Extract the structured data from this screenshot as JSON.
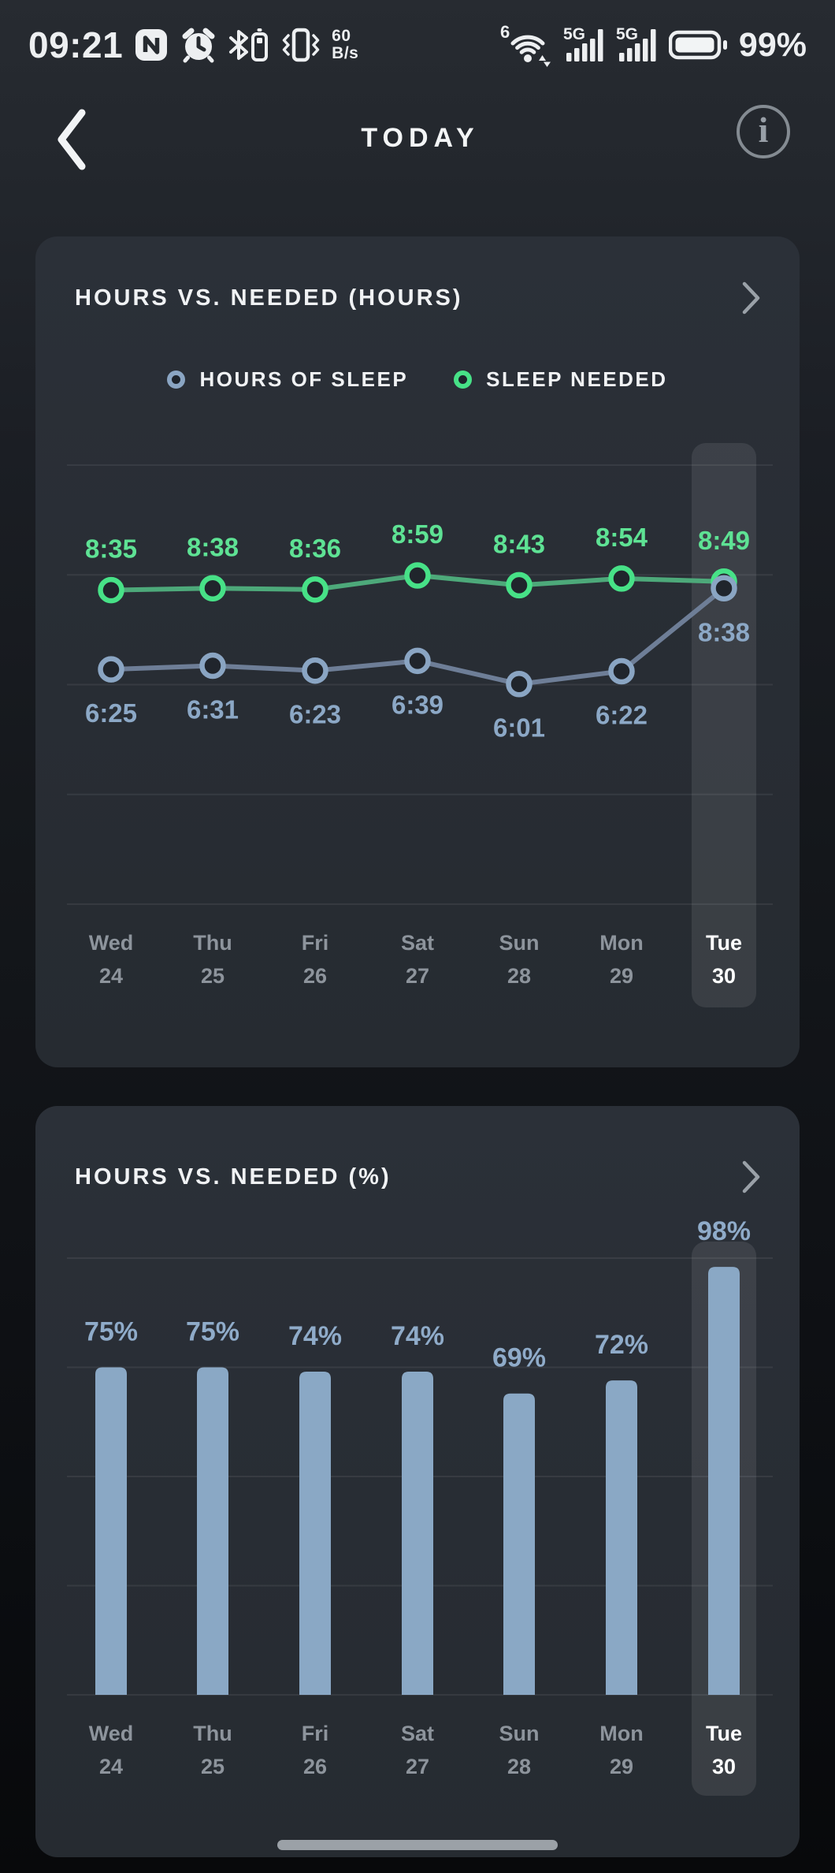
{
  "status_bar": {
    "time": "09:21",
    "net_speed": {
      "value": "60",
      "unit": "B/s"
    },
    "wifi_generation": "6",
    "cellular": [
      {
        "label": "5G"
      },
      {
        "label": "5G"
      }
    ],
    "battery_percent": "99%"
  },
  "header": {
    "title": "TODAY"
  },
  "chart_data": [
    {
      "type": "line",
      "title": "HOURS VS. NEEDED (HOURS)",
      "x_categories": [
        {
          "day": "Wed",
          "date": "24"
        },
        {
          "day": "Thu",
          "date": "25"
        },
        {
          "day": "Fri",
          "date": "26"
        },
        {
          "day": "Sat",
          "date": "27"
        },
        {
          "day": "Sun",
          "date": "28"
        },
        {
          "day": "Mon",
          "date": "29"
        },
        {
          "day": "Tue",
          "date": "30"
        }
      ],
      "highlight_index": 6,
      "ylim_hours": [
        0,
        12
      ],
      "gridline_hours": [
        0,
        3,
        6,
        9,
        12
      ],
      "grid": true,
      "legend_position": "top",
      "series": [
        {
          "name": "HOURS OF SLEEP",
          "color_line": "#6E7E97",
          "color_marker": "#8AA5C3",
          "color_label": "#8CA8C6",
          "label_side": "below",
          "values_minutes": [
            385,
            391,
            383,
            399,
            361,
            382,
            518
          ],
          "labels": [
            "6:25",
            "6:31",
            "6:23",
            "6:39",
            "6:01",
            "6:22",
            "8:38"
          ]
        },
        {
          "name": "SLEEP NEEDED",
          "color_line": "#4DA97A",
          "color_marker": "#47E187",
          "color_label": "#5EE294",
          "label_side": "above",
          "values_minutes": [
            515,
            518,
            516,
            539,
            523,
            534,
            529
          ],
          "labels": [
            "8:35",
            "8:38",
            "8:36",
            "8:59",
            "8:43",
            "8:54",
            "8:49"
          ]
        }
      ]
    },
    {
      "type": "bar",
      "title": "HOURS VS. NEEDED (%)",
      "x_categories": [
        {
          "day": "Wed",
          "date": "24"
        },
        {
          "day": "Thu",
          "date": "25"
        },
        {
          "day": "Fri",
          "date": "26"
        },
        {
          "day": "Sat",
          "date": "27"
        },
        {
          "day": "Sun",
          "date": "28"
        },
        {
          "day": "Mon",
          "date": "29"
        },
        {
          "day": "Tue",
          "date": "30"
        }
      ],
      "highlight_index": 6,
      "ylim_percent": [
        0,
        100
      ],
      "gridline_percents": [
        0,
        25,
        50,
        75,
        100
      ],
      "grid": true,
      "bar_color": "#8AA8C5",
      "label_color": "#8FABC9",
      "values_percent": [
        75,
        75,
        74,
        74,
        69,
        72,
        98
      ],
      "labels": [
        "75%",
        "75%",
        "74%",
        "74%",
        "69%",
        "72%",
        "98%"
      ]
    }
  ],
  "colors": {
    "highlight_band": "rgba(255,255,255,0.09)",
    "gridline": "rgba(255,255,255,0.07)",
    "axis_label": "#8d949c",
    "axis_label_active": "#ffffff",
    "marker_fill": "#20252c"
  }
}
